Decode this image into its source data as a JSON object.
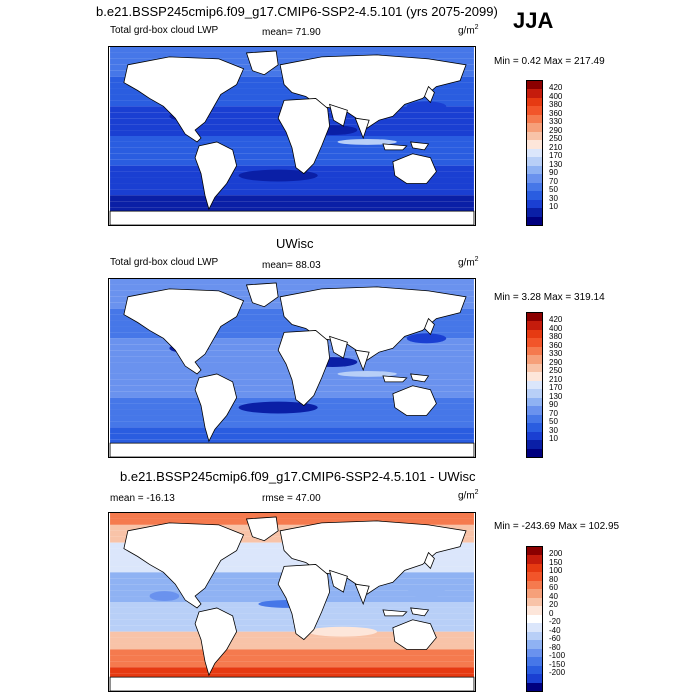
{
  "header": {
    "case_title": "b.e21.BSSP245cmip6.f09_g17.CMIP6-SSP2-4.5.101 (yrs 2075-2099)",
    "season": "JJA"
  },
  "panels": [
    {
      "id": "model",
      "title": "",
      "var_label": "Total grd-box cloud LWP",
      "stat_label": "mean=  71.90",
      "units": "g/m",
      "units_exp": "2",
      "minmax": "Min =   0.42 Max = 217.49",
      "colorbar": {
        "colors": [
          "#8b0000",
          "#c51c0c",
          "#e63a12",
          "#f2552a",
          "#f57a4e",
          "#f6a07a",
          "#f8c3a8",
          "#fde6da",
          "#dbe6fb",
          "#b8cff7",
          "#8fb2f3",
          "#6a92ee",
          "#4677e8",
          "#2a5de0",
          "#1a3fd2",
          "#0a1fa6",
          "#00007f"
        ],
        "labels": [
          "420",
          "400",
          "380",
          "360",
          "330",
          "290",
          "250",
          "210",
          "170",
          "130",
          "90",
          "70",
          "50",
          "30",
          "10"
        ]
      }
    },
    {
      "id": "obs",
      "title": "UWisc",
      "var_label": "Total grd-box cloud LWP",
      "stat_label": "mean=  88.03",
      "units": "g/m",
      "units_exp": "2",
      "minmax": "Min =   3.28 Max = 319.14",
      "colorbar": {
        "colors": [
          "#8b0000",
          "#c51c0c",
          "#e63a12",
          "#f2552a",
          "#f57a4e",
          "#f6a07a",
          "#f8c3a8",
          "#fde6da",
          "#dbe6fb",
          "#b8cff7",
          "#8fb2f3",
          "#6a92ee",
          "#4677e8",
          "#2a5de0",
          "#1a3fd2",
          "#0a1fa6",
          "#00007f"
        ],
        "labels": [
          "420",
          "400",
          "380",
          "360",
          "330",
          "290",
          "250",
          "210",
          "170",
          "130",
          "90",
          "70",
          "50",
          "30",
          "10"
        ]
      }
    },
    {
      "id": "diff",
      "title": "b.e21.BSSP245cmip6.f09_g17.CMIP6-SSP2-4.5.101 - UWisc",
      "var_label": "mean = -16.13",
      "stat_label": "rmse =  47.00",
      "units": "g/m",
      "units_exp": "2",
      "minmax": "Min = -243.69 Max = 102.95",
      "colorbar": {
        "colors": [
          "#8b0000",
          "#c51c0c",
          "#e63a12",
          "#f2552a",
          "#f57a4e",
          "#f6a07a",
          "#f8c3a8",
          "#fde6da",
          "#ffffff",
          "#dbe6fb",
          "#b8cff7",
          "#8fb2f3",
          "#6a92ee",
          "#4677e8",
          "#2a5de0",
          "#1a3fd2",
          "#00007f"
        ],
        "labels": [
          "200",
          "150",
          "100",
          "80",
          "60",
          "40",
          "20",
          "0",
          "-20",
          "-40",
          "-60",
          "-80",
          "-100",
          "-150",
          "-200"
        ]
      }
    }
  ]
}
